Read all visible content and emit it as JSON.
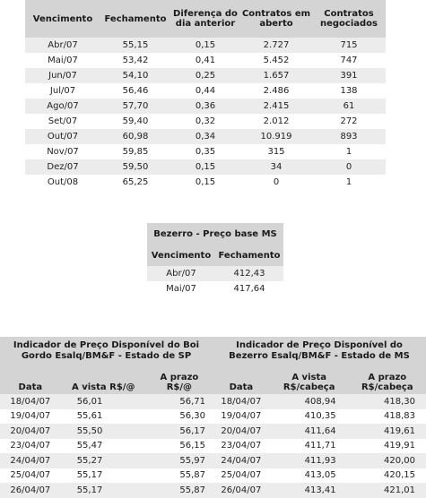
{
  "futures": {
    "headers": [
      "Vencimento",
      "Fechamento",
      "Diferença do dia anterior",
      "Contratos em aberto",
      "Contratos negociados"
    ],
    "rows": [
      [
        "Abr/07",
        "55,15",
        "0,15",
        "2.727",
        "715"
      ],
      [
        "Mai/07",
        "53,42",
        "0,41",
        "5.452",
        "747"
      ],
      [
        "Jun/07",
        "54,10",
        "0,25",
        "1.657",
        "391"
      ],
      [
        "Jul/07",
        "56,46",
        "0,44",
        "2.486",
        "138"
      ],
      [
        "Ago/07",
        "57,70",
        "0,36",
        "2.415",
        "61"
      ],
      [
        "Set/07",
        "59,40",
        "0,32",
        "2.012",
        "272"
      ],
      [
        "Out/07",
        "60,98",
        "0,34",
        "10.919",
        "893"
      ],
      [
        "Nov/07",
        "59,85",
        "0,35",
        "315",
        "1"
      ],
      [
        "Dez/07",
        "59,50",
        "0,15",
        "34",
        "0"
      ],
      [
        "Out/08",
        "65,25",
        "0,15",
        "0",
        "1"
      ]
    ]
  },
  "bezerro": {
    "title": "Bezerro - Preço base MS",
    "headers": [
      "Vencimento",
      "Fechamento"
    ],
    "rows": [
      [
        "Abr/07",
        "412,43"
      ],
      [
        "Mai/07",
        "417,64"
      ]
    ]
  },
  "indicador_boi": {
    "title": "Indicador de Preço Disponível do Boi Gordo Esalq/BM&F - Estado de SP",
    "headers": [
      "Data",
      "A vista R$/@",
      "A prazo R$/@"
    ],
    "rows": [
      [
        "18/04/07",
        "56,01",
        "56,71"
      ],
      [
        "19/04/07",
        "55,61",
        "56,30"
      ],
      [
        "20/04/07",
        "55,50",
        "56,17"
      ],
      [
        "23/04/07",
        "55,47",
        "56,15"
      ],
      [
        "24/04/07",
        "55,27",
        "55,97"
      ],
      [
        "25/04/07",
        "55,17",
        "55,87"
      ],
      [
        "26/04/07",
        "55,17",
        "55,87"
      ]
    ]
  },
  "indicador_bezerro": {
    "title": "Indicador de Preço Disponível do Bezerro Esalq/BM&F - Estado de MS",
    "headers": [
      "Data",
      "A vista R$/cabeça",
      "A prazo R$/cabeça"
    ],
    "rows": [
      [
        "18/04/07",
        "408,94",
        "418,30"
      ],
      [
        "19/04/07",
        "410,35",
        "418,83"
      ],
      [
        "20/04/07",
        "411,64",
        "419,61"
      ],
      [
        "23/04/07",
        "411,71",
        "419,91"
      ],
      [
        "24/04/07",
        "411,93",
        "420,00"
      ],
      [
        "25/04/07",
        "413,05",
        "420,15"
      ],
      [
        "26/04/07",
        "413,41",
        "421,01"
      ]
    ]
  }
}
